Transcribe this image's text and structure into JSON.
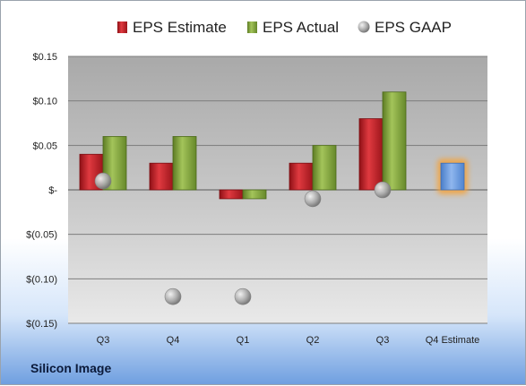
{
  "company": "Silicon Image",
  "chart_data": {
    "type": "bar",
    "categories": [
      "Q3",
      "Q4",
      "Q1",
      "Q2",
      "Q3",
      "Q4 Estimate"
    ],
    "series": [
      {
        "name": "EPS Estimate",
        "values": [
          0.04,
          0.03,
          -0.01,
          0.03,
          0.08,
          null
        ],
        "color": "#c8202a"
      },
      {
        "name": "EPS Actual",
        "values": [
          0.06,
          0.06,
          -0.01,
          0.05,
          0.11,
          null
        ],
        "color": "#7fa23a"
      },
      {
        "name": "EPS GAAP",
        "values": [
          0.01,
          -0.12,
          -0.12,
          -0.01,
          0.0,
          null
        ],
        "color": "#a8a8a8"
      }
    ],
    "forecast": {
      "category": "Q4 Estimate",
      "value": 0.03,
      "color": "#6f9fe0"
    },
    "yticks": [
      {
        "value": 0.15,
        "label": "$0.15"
      },
      {
        "value": 0.1,
        "label": "$0.10"
      },
      {
        "value": 0.05,
        "label": "$0.05"
      },
      {
        "value": 0.0,
        "label": "$-"
      },
      {
        "value": -0.05,
        "label": "$(0.05)"
      },
      {
        "value": -0.1,
        "label": "$(0.10)"
      },
      {
        "value": -0.15,
        "label": "$(0.15)"
      }
    ],
    "ylim": [
      -0.15,
      0.15
    ],
    "grid": true,
    "legend_position": "top"
  }
}
